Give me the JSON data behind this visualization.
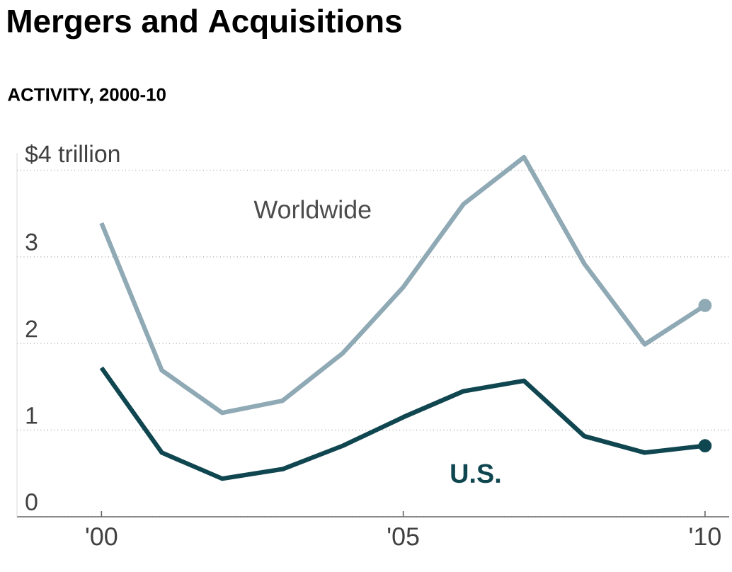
{
  "chart_data": {
    "type": "line",
    "title": "Mergers and Acquisitions",
    "subtitle": "ACTIVITY, 2000-10",
    "x": [
      2000,
      2001,
      2002,
      2003,
      2004,
      2005,
      2006,
      2007,
      2008,
      2009,
      2010
    ],
    "series": [
      {
        "name": "Worldwide",
        "color": "#8fa9b5",
        "values": [
          3.39,
          1.69,
          1.2,
          1.34,
          1.89,
          2.65,
          3.61,
          4.15,
          2.92,
          1.99,
          2.44
        ]
      },
      {
        "name": "U.S.",
        "color": "#0f4650",
        "values": [
          1.72,
          0.74,
          0.44,
          0.55,
          0.82,
          1.15,
          1.45,
          1.57,
          0.93,
          0.74,
          0.82
        ]
      }
    ],
    "xlim": [
      1998.6,
      2010.4
    ],
    "ylim": [
      0,
      4.2
    ],
    "xticks": [
      {
        "value": 2000,
        "label": "'00"
      },
      {
        "value": 2005,
        "label": "'05"
      },
      {
        "value": 2010,
        "label": "'10"
      }
    ],
    "yticks": [
      0,
      1,
      2,
      3,
      {
        "value": 4,
        "label": "$4 trillion"
      }
    ],
    "grid": "y",
    "line_style": "solid"
  }
}
